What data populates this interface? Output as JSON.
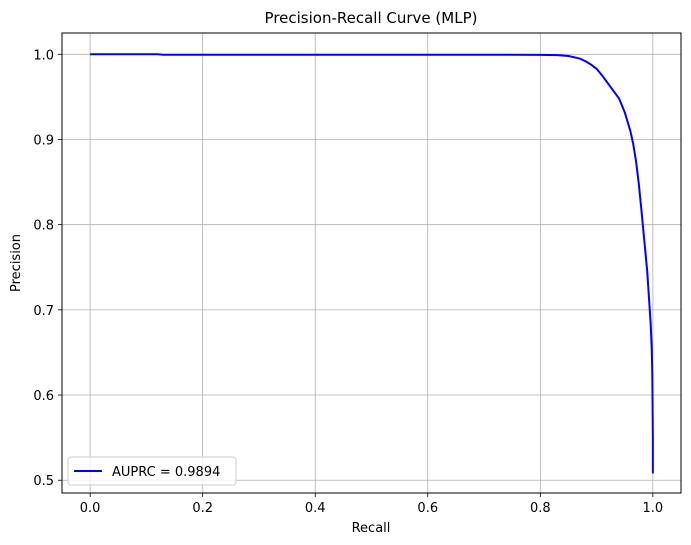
{
  "chart_data": {
    "type": "line",
    "title": "Precision-Recall Curve (MLP)",
    "xlabel": "Recall",
    "ylabel": "Precision",
    "xlim": [
      -0.05,
      1.05
    ],
    "ylim": [
      0.485,
      1.025
    ],
    "xticks": [
      "0.0",
      "0.2",
      "0.4",
      "0.6",
      "0.8",
      "1.0"
    ],
    "xtick_values": [
      0.0,
      0.2,
      0.4,
      0.6,
      0.8,
      1.0
    ],
    "yticks": [
      "0.5",
      "0.6",
      "0.7",
      "0.8",
      "0.9",
      "1.0"
    ],
    "ytick_values": [
      0.5,
      0.6,
      0.7,
      0.8,
      0.9,
      1.0
    ],
    "grid": true,
    "legend_position": "lower-left",
    "series": [
      {
        "name": "AUPRC = 0.9894",
        "color": "#0000ff",
        "x": [
          0.0,
          0.05,
          0.12,
          0.13,
          0.3,
          0.5,
          0.7,
          0.8,
          0.83,
          0.85,
          0.87,
          0.88,
          0.89,
          0.9,
          0.91,
          0.92,
          0.93,
          0.94,
          0.95,
          0.96,
          0.965,
          0.97,
          0.975,
          0.98,
          0.985,
          0.99,
          0.993,
          0.996,
          0.998,
          0.999,
          1.0,
          1.0
        ],
        "y": [
          1.0,
          1.0,
          1.0,
          0.9995,
          0.9995,
          0.9995,
          0.9995,
          0.9993,
          0.999,
          0.998,
          0.995,
          0.992,
          0.988,
          0.983,
          0.975,
          0.966,
          0.957,
          0.948,
          0.932,
          0.91,
          0.895,
          0.875,
          0.848,
          0.815,
          0.78,
          0.745,
          0.715,
          0.685,
          0.655,
          0.625,
          0.55,
          0.508
        ]
      }
    ]
  }
}
